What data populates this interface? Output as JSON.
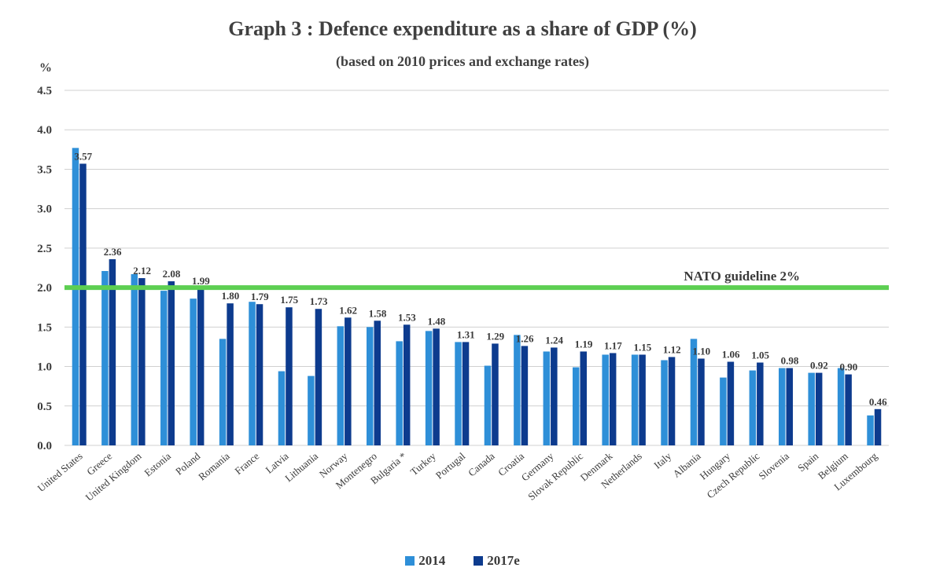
{
  "chart_data": {
    "type": "bar",
    "title": "Graph 3 : Defence expenditure as a share of GDP (%)",
    "subtitle": "(based on 2010 prices and exchange rates)",
    "ylabel": "%",
    "ylim": [
      0,
      4.5
    ],
    "yticks": [
      "0.0",
      "0.5",
      "1.0",
      "1.5",
      "2.0",
      "2.5",
      "3.0",
      "3.5",
      "4.0",
      "4.5"
    ],
    "grid": true,
    "legend_position": "bottom",
    "categories": [
      "United States",
      "Greece",
      "United Kingdom",
      "Estonia",
      "Poland",
      "Romania",
      "France",
      "Latvia",
      "Lithuania",
      "Norway",
      "Montenegro",
      "Bulgaria *",
      "Turkey",
      "Portugal",
      "Canada",
      "Croatia",
      "Germany",
      "Slovak Republic",
      "Denmark",
      "Netherlands",
      "Italy",
      "Albania",
      "Hungary",
      "Czech Republic",
      "Slovenia",
      "Spain",
      "Belgium",
      "Luxembourg"
    ],
    "series": [
      {
        "name": "2014",
        "color": "#2e8fd8",
        "values": [
          3.77,
          2.21,
          2.17,
          1.96,
          1.86,
          1.35,
          1.82,
          0.94,
          0.88,
          1.51,
          1.5,
          1.32,
          1.45,
          1.31,
          1.01,
          1.4,
          1.19,
          0.99,
          1.15,
          1.15,
          1.08,
          1.35,
          0.86,
          0.95,
          0.98,
          0.92,
          0.98,
          0.38
        ]
      },
      {
        "name": "2017e",
        "color": "#0d3b8e",
        "values": [
          3.57,
          2.36,
          2.12,
          2.08,
          1.99,
          1.8,
          1.79,
          1.75,
          1.73,
          1.62,
          1.58,
          1.53,
          1.48,
          1.31,
          1.29,
          1.26,
          1.24,
          1.19,
          1.17,
          1.15,
          1.12,
          1.1,
          1.06,
          1.05,
          0.98,
          0.92,
          0.9,
          0.46
        ]
      }
    ],
    "data_labels": [
      "3.57",
      "2.36",
      "2.12",
      "2.08",
      "1.99",
      "1.80",
      "1.79",
      "1.75",
      "1.73",
      "1.62",
      "1.58",
      "1.53",
      "1.48",
      "1.31",
      "1.29",
      "1.26",
      "1.24",
      "1.19",
      "1.17",
      "1.15",
      "1.12",
      "1.10",
      "1.06",
      "1.05",
      "0.98",
      "0.92",
      "0.90",
      "0.46"
    ],
    "reference_line": {
      "value": 2.0,
      "label": "NATO guideline 2%",
      "color": "#5dcf52"
    }
  }
}
